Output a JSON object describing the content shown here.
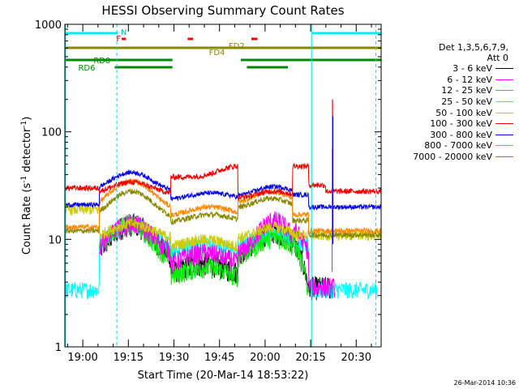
{
  "chart_data": {
    "type": "line",
    "title": "HESSI Observing Summary Count Rates",
    "xlabel": "Start Time (20-Mar-14 18:53:22)",
    "ylabel": "Count Rate (s",
    "ylabel_exp1": "-1",
    "ylabel_mid": " detector",
    "ylabel_exp2": "-1",
    "ylabel_end": ")",
    "y_scale": "log",
    "ylim": [
      1,
      1000
    ],
    "y_ticks": [
      {
        "value": 1,
        "label": "1"
      },
      {
        "value": 10,
        "label": "10"
      },
      {
        "value": 100,
        "label": "100"
      },
      {
        "value": 1000,
        "label": "1000"
      }
    ],
    "xlim_minutes": [
      -5.9,
      98.2
    ],
    "x_ticks": [
      {
        "minutes": 0,
        "label": "19:00"
      },
      {
        "minutes": 15,
        "label": "19:15"
      },
      {
        "minutes": 30,
        "label": "19:30"
      },
      {
        "minutes": 45,
        "label": "19:45"
      },
      {
        "minutes": 60,
        "label": "20:00"
      },
      {
        "minutes": 75,
        "label": "20:15"
      },
      {
        "minutes": 90,
        "label": "20:30"
      }
    ],
    "legend_header": [
      "Det 1,3,5,6,7,9,",
      "Att 0"
    ],
    "series": [
      {
        "name": "3 - 6 keV",
        "color": "#000000"
      },
      {
        "name": "6 - 12 keV",
        "color": "#ff00ff"
      },
      {
        "name": "12 - 25 keV",
        "color": "#00ee00"
      },
      {
        "name": "25 - 50 keV",
        "color": "#00ffff"
      },
      {
        "name": "50 - 100 keV",
        "color": "#cccc00"
      },
      {
        "name": "100 - 300 keV",
        "color": "#ee0000"
      },
      {
        "name": "300 - 800 keV",
        "color": "#0000ee"
      },
      {
        "name": "800 - 7000 keV",
        "color": "#ff8800"
      },
      {
        "name": "7000 - 20000 keV",
        "color": "#888800"
      }
    ],
    "flag_labels": {
      "N": "N",
      "F": "F",
      "FD2": "FD2",
      "FD4": "FD4",
      "RD0": "RD0",
      "RD6": "RD6"
    }
  },
  "timestamp": "26-Mar-2014 10:36"
}
